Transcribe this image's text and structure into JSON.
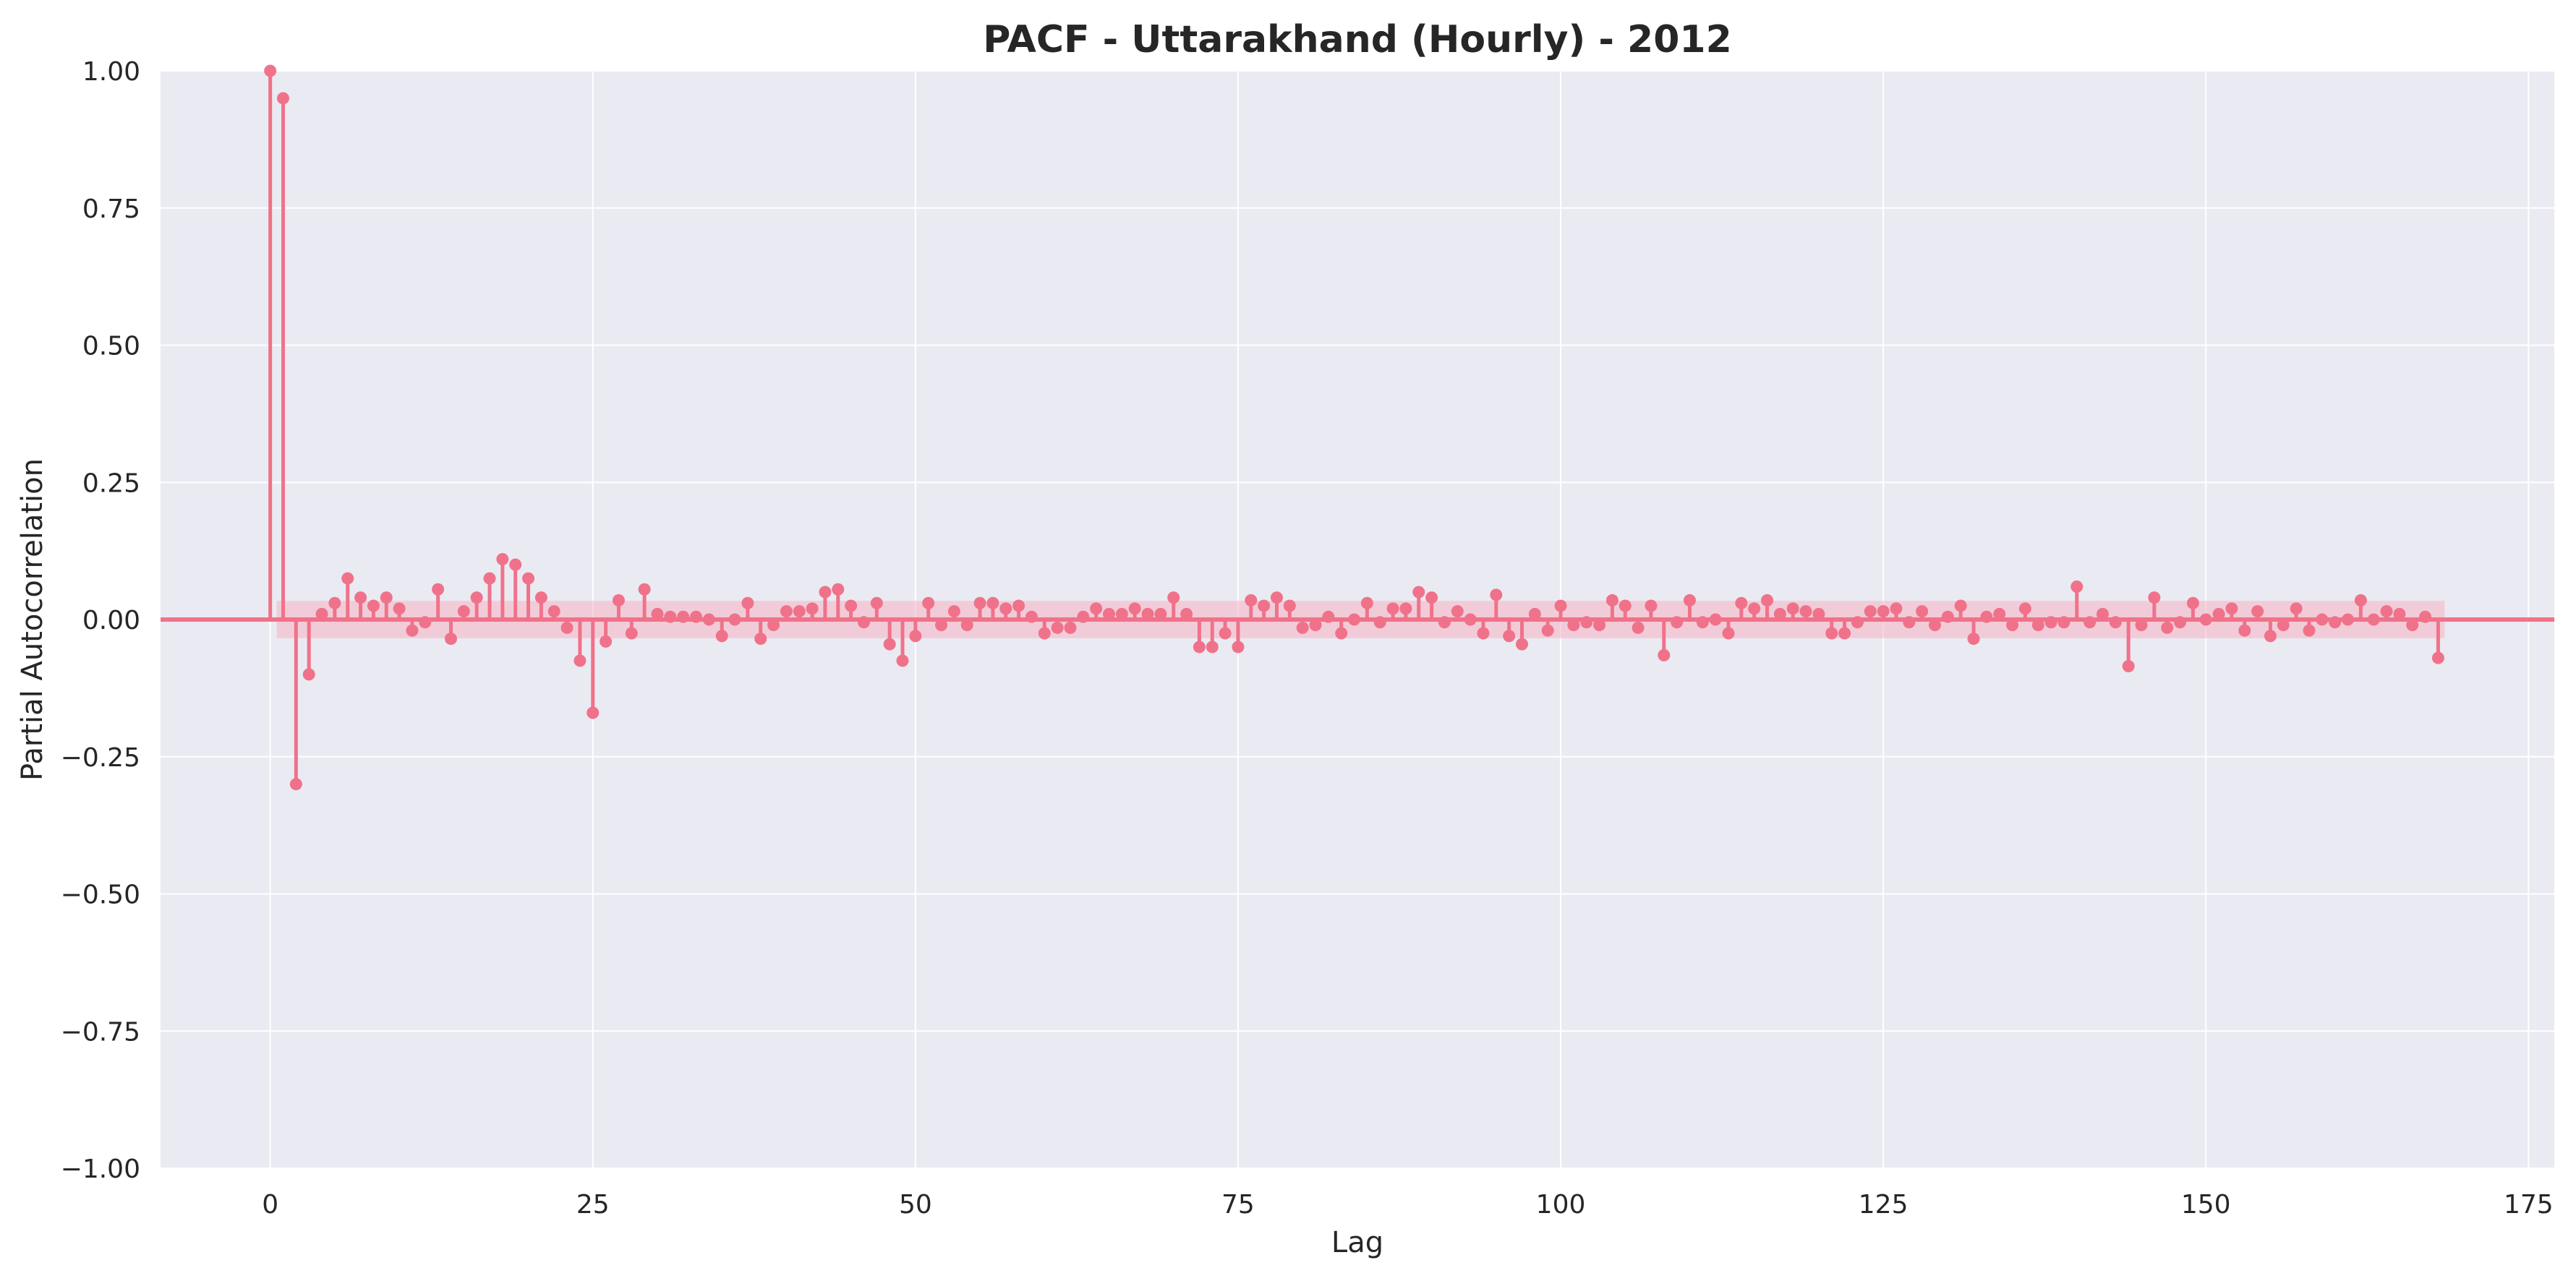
{
  "chart_data": {
    "type": "stem",
    "title": "PACF - Uttarakhand (Hourly) - 2012",
    "xlabel": "Lag",
    "ylabel": "Partial Autocorrelation",
    "xlim": [
      -8.5,
      177
    ],
    "ylim": [
      -1.0,
      1.0
    ],
    "xticks": [
      0,
      25,
      50,
      75,
      100,
      125,
      150,
      175
    ],
    "xtick_labels": [
      "0",
      "25",
      "50",
      "75",
      "100",
      "125",
      "150",
      "175"
    ],
    "yticks": [
      -1.0,
      -0.75,
      -0.5,
      -0.25,
      0.0,
      0.25,
      0.5,
      0.75,
      1.0
    ],
    "ytick_labels": [
      "−1.00",
      "−0.75",
      "−0.50",
      "−0.25",
      "0.00",
      "0.25",
      "0.50",
      "0.75",
      "1.00"
    ],
    "grid": true,
    "confidence_band": 0.034,
    "colors": {
      "stem": "#f0728a",
      "marker": "#f0728a",
      "band": "#f5b3c3",
      "plot_bg": "#eaeaf2",
      "grid": "#ffffff",
      "text": "#262626"
    },
    "x": [
      0,
      1,
      2,
      3,
      4,
      5,
      6,
      7,
      8,
      9,
      10,
      11,
      12,
      13,
      14,
      15,
      16,
      17,
      18,
      19,
      20,
      21,
      22,
      23,
      24,
      25,
      26,
      27,
      28,
      29,
      30,
      31,
      32,
      33,
      34,
      35,
      36,
      37,
      38,
      39,
      40,
      41,
      42,
      43,
      44,
      45,
      46,
      47,
      48,
      49,
      50,
      51,
      52,
      53,
      54,
      55,
      56,
      57,
      58,
      59,
      60,
      61,
      62,
      63,
      64,
      65,
      66,
      67,
      68,
      69,
      70,
      71,
      72,
      73,
      74,
      75,
      76,
      77,
      78,
      79,
      80,
      81,
      82,
      83,
      84,
      85,
      86,
      87,
      88,
      89,
      90,
      91,
      92,
      93,
      94,
      95,
      96,
      97,
      98,
      99,
      100,
      101,
      102,
      103,
      104,
      105,
      106,
      107,
      108,
      109,
      110,
      111,
      112,
      113,
      114,
      115,
      116,
      117,
      118,
      119,
      120,
      121,
      122,
      123,
      124,
      125,
      126,
      127,
      128,
      129,
      130,
      131,
      132,
      133,
      134,
      135,
      136,
      137,
      138,
      139,
      140,
      141,
      142,
      143,
      144,
      145,
      146,
      147,
      148,
      149,
      150,
      151,
      152,
      153,
      154,
      155,
      156,
      157,
      158,
      159,
      160,
      161,
      162,
      163,
      164,
      165,
      166,
      167,
      168
    ],
    "values": [
      1.0,
      0.95,
      -0.3,
      -0.1,
      0.01,
      0.03,
      0.075,
      0.04,
      0.025,
      0.04,
      0.02,
      -0.02,
      -0.005,
      0.055,
      -0.035,
      0.015,
      0.04,
      0.075,
      0.11,
      0.1,
      0.075,
      0.04,
      0.015,
      -0.015,
      -0.075,
      -0.17,
      -0.04,
      0.035,
      -0.025,
      0.055,
      0.01,
      0.005,
      0.005,
      0.005,
      0.0,
      -0.03,
      0.0,
      0.03,
      -0.035,
      -0.01,
      0.015,
      0.015,
      0.02,
      0.05,
      0.055,
      0.025,
      -0.005,
      0.03,
      -0.045,
      -0.075,
      -0.03,
      0.03,
      -0.01,
      0.015,
      -0.01,
      0.03,
      0.03,
      0.02,
      0.025,
      0.005,
      -0.025,
      -0.015,
      -0.015,
      0.005,
      0.02,
      0.01,
      0.01,
      0.02,
      0.01,
      0.01,
      0.04,
      0.01,
      -0.05,
      -0.05,
      -0.025,
      -0.05,
      0.035,
      0.025,
      0.04,
      0.025,
      -0.015,
      -0.01,
      0.005,
      -0.025,
      0.0,
      0.03,
      -0.005,
      0.02,
      0.02,
      0.05,
      0.04,
      -0.005,
      0.015,
      0.0,
      -0.025,
      0.045,
      -0.03,
      -0.045,
      0.01,
      -0.02,
      0.025,
      -0.01,
      -0.005,
      -0.01,
      0.035,
      0.025,
      -0.015,
      0.025,
      -0.065,
      -0.005,
      0.035,
      -0.005,
      0.0,
      -0.025,
      0.03,
      0.02,
      0.035,
      0.01,
      0.02,
      0.015,
      0.01,
      -0.025,
      -0.025,
      -0.005,
      0.015,
      0.015,
      0.02,
      -0.005,
      0.015,
      -0.01,
      0.005,
      0.025,
      -0.035,
      0.005,
      0.01,
      -0.01,
      0.02,
      -0.01,
      -0.005,
      -0.005,
      0.06,
      -0.005,
      0.01,
      -0.005,
      -0.085,
      -0.01,
      0.04,
      -0.015,
      -0.005,
      0.03,
      0.0,
      0.01,
      0.02,
      -0.02,
      0.015,
      -0.03,
      -0.01,
      0.02,
      -0.02,
      0.0,
      -0.005,
      0.0,
      0.035,
      0.0,
      0.015,
      0.01,
      -0.01,
      0.005,
      -0.07
    ]
  }
}
